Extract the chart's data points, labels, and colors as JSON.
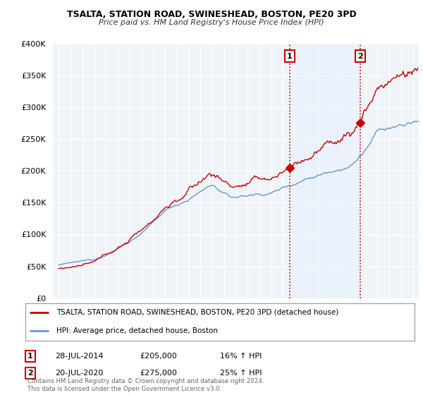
{
  "title": "TSALTA, STATION ROAD, SWINESHEAD, BOSTON, PE20 3PD",
  "subtitle": "Price paid vs. HM Land Registry's House Price Index (HPI)",
  "background_color": "#ffffff",
  "plot_bg_color": "#f0f4f8",
  "grid_color": "#ffffff",
  "hpi_color": "#6699cc",
  "price_color": "#cc0000",
  "vline_color": "#cc0000",
  "shade_color": "#ddeeff",
  "sale1_year": 2014.57,
  "sale1_price": 205000,
  "sale1_text": "28-JUL-2014",
  "sale1_pct": "16% ↑ HPI",
  "sale2_year": 2020.55,
  "sale2_price": 275000,
  "sale2_text": "20-JUL-2020",
  "sale2_pct": "25% ↑ HPI",
  "legend_line1": "TSALTA, STATION ROAD, SWINESHEAD, BOSTON, PE20 3PD (detached house)",
  "legend_line2": "HPI: Average price, detached house, Boston",
  "footer": "Contains HM Land Registry data © Crown copyright and database right 2024.\nThis data is licensed under the Open Government Licence v3.0.",
  "ylim": [
    0,
    400000
  ],
  "yticks": [
    0,
    50000,
    100000,
    150000,
    200000,
    250000,
    300000,
    350000,
    400000
  ],
  "xmin": 1994.5,
  "xmax": 2025.5
}
